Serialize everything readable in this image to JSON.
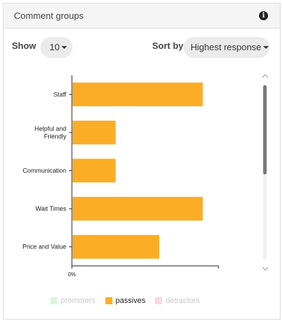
{
  "card": {
    "title": "Comment groups",
    "info_icon": "info-icon"
  },
  "controls": {
    "show_label": "Show",
    "show_value": "10",
    "sort_label": "Sort by",
    "sort_value": "Highest response"
  },
  "colors": {
    "promoters": "#dff4de",
    "passives": "#fbad26",
    "detractors": "#fadada",
    "axis": "#222222"
  },
  "legend": [
    {
      "label": "promoters",
      "active": false
    },
    {
      "label": "passives",
      "active": true
    },
    {
      "label": "detractors",
      "active": false
    }
  ],
  "chart_data": {
    "type": "bar",
    "orientation": "horizontal",
    "categories": [
      "Staff",
      "Helpful and Friendly",
      "Communication",
      "Wait Times",
      "Price and Value"
    ],
    "category_lines": [
      [
        "Staff"
      ],
      [
        "Helpful and",
        "Friendly"
      ],
      [
        "Communication"
      ],
      [
        "Wait Times"
      ],
      [
        "Price and Value"
      ]
    ],
    "series": [
      {
        "name": "passives",
        "values": [
          30,
          10,
          10,
          30,
          20
        ]
      }
    ],
    "x_tick_labels": [
      "0%"
    ],
    "xlim": [
      0,
      33.6
    ],
    "grid": false,
    "legend_position": "bottom"
  }
}
